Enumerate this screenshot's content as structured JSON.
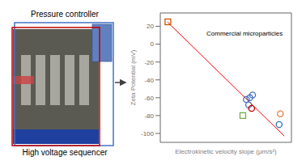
{
  "chart_data": {
    "type": "scatter",
    "xlabel": "Electrokinetic velocity slope (μm/s²)",
    "ylabel": "Zeta Potential (mV)",
    "xlim": [
      -0.04,
      1.08
    ],
    "ylim": [
      -110,
      35
    ],
    "yticks": [
      20,
      0,
      -20,
      -40,
      -60,
      -80,
      -100
    ],
    "tick_labels": "y",
    "grid": false,
    "annotations": [
      "Pressure controller",
      "High voltage sequencer",
      "Commercial microparticles"
    ],
    "series": [
      {
        "type": "line",
        "color": "#ff0000",
        "x": [
          0.02,
          1.02
        ],
        "values": [
          25,
          -103
        ]
      },
      {
        "type": "scatter",
        "marker": "square",
        "x": [
          0.025,
          0.665
        ],
        "values": [
          25,
          -80
        ],
        "colors": [
          "#cc5500",
          "#70ad47"
        ]
      },
      {
        "type": "scatter",
        "marker": "circle",
        "x": [
          0.695,
          0.725,
          0.748,
          0.715,
          0.74,
          0.985,
          0.975
        ],
        "values": [
          -62,
          -60,
          -57,
          -68,
          -72,
          -78,
          -90
        ],
        "colors": [
          "#4472c4",
          "#4472c4",
          "#4472c4",
          "#4472c4",
          "#c00000",
          "#ed7d31",
          "#2e75b6"
        ]
      }
    ]
  }
}
